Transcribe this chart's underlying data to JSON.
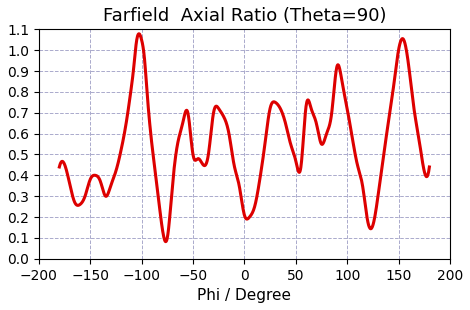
{
  "title": "Farfield  Axial Ratio (Theta=90)",
  "xlabel": "Phi / Degree",
  "ylabel": "",
  "xlim": [
    -200,
    200
  ],
  "ylim": [
    0,
    1.1
  ],
  "xticks": [
    -200,
    -150,
    -100,
    -50,
    0,
    50,
    100,
    150,
    200
  ],
  "yticks": [
    0,
    0.1,
    0.2,
    0.3,
    0.4,
    0.5,
    0.6,
    0.7,
    0.8,
    0.9,
    1.0,
    1.1
  ],
  "line_color": "#dd0000",
  "line_width": 2.2,
  "background_color": "#ffffff",
  "grid_color": "#aaaacc",
  "title_fontsize": 13,
  "label_fontsize": 11,
  "tick_fontsize": 10,
  "phi": [
    -180,
    -170,
    -165,
    -160,
    -155,
    -150,
    -145,
    -140,
    -135,
    -130,
    -125,
    -120,
    -115,
    -110,
    -108,
    -105,
    -100,
    -97,
    -95,
    -90,
    -85,
    -80,
    -75,
    -70,
    -65,
    -60,
    -55,
    -50,
    -45,
    -40,
    -35,
    -30,
    -25,
    -20,
    -15,
    -10,
    -5,
    0,
    5,
    10,
    15,
    20,
    25,
    30,
    35,
    40,
    45,
    50,
    55,
    60,
    65,
    70,
    75,
    80,
    85,
    90,
    95,
    100,
    105,
    110,
    115,
    120,
    125,
    130,
    135,
    140,
    145,
    150,
    155,
    160,
    165,
    170,
    175,
    180
  ],
  "ar": [
    0.44,
    0.36,
    0.27,
    0.26,
    0.3,
    0.38,
    0.4,
    0.37,
    0.3,
    0.35,
    0.42,
    0.52,
    0.65,
    0.82,
    0.9,
    1.04,
    1.05,
    0.95,
    0.82,
    0.55,
    0.35,
    0.15,
    0.1,
    0.35,
    0.55,
    0.65,
    0.7,
    0.5,
    0.48,
    0.45,
    0.5,
    0.7,
    0.72,
    0.68,
    0.6,
    0.45,
    0.35,
    0.21,
    0.2,
    0.25,
    0.38,
    0.55,
    0.72,
    0.75,
    0.72,
    0.65,
    0.55,
    0.47,
    0.44,
    0.73,
    0.72,
    0.65,
    0.55,
    0.6,
    0.7,
    0.92,
    0.85,
    0.72,
    0.58,
    0.45,
    0.35,
    0.18,
    0.16,
    0.3,
    0.48,
    0.65,
    0.82,
    1.0,
    1.05,
    0.92,
    0.72,
    0.57,
    0.42,
    0.44
  ]
}
